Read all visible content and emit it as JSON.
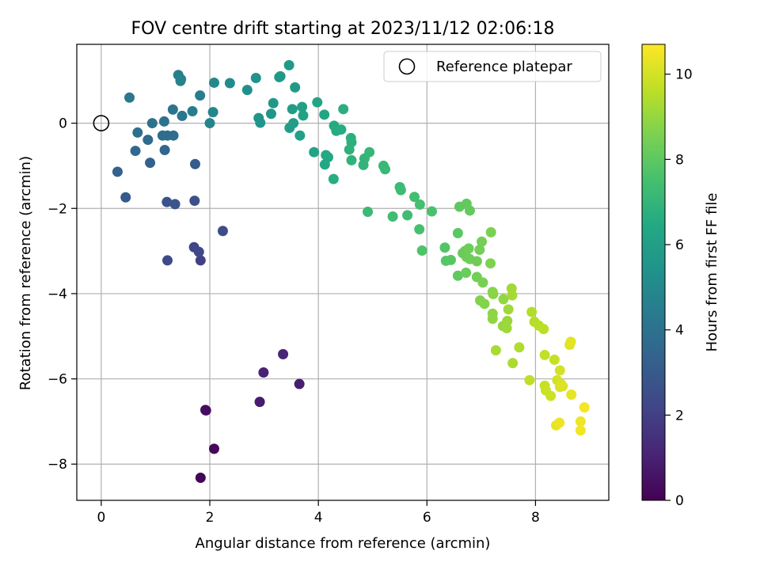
{
  "chart_data": {
    "type": "scatter",
    "title": "FOV centre drift starting at 2023/11/12 02:06:18",
    "xlabel": "Angular distance from reference (arcmin)",
    "ylabel": "Rotation from reference (arcmin)",
    "xlim": [
      -0.45,
      9.35
    ],
    "ylim": [
      -8.85,
      1.85
    ],
    "xticks": [
      0,
      2,
      4,
      6,
      8
    ],
    "yticks": [
      -8,
      -6,
      -4,
      -2,
      0
    ],
    "xtick_labels": [
      "0",
      "2",
      "4",
      "6",
      "8"
    ],
    "ytick_labels": [
      "−8",
      "−6",
      "−4",
      "−2",
      "0"
    ],
    "grid": true,
    "legend": {
      "position": "top-right",
      "entries": [
        "Reference platepar"
      ]
    },
    "reference_point": {
      "x": 0,
      "y": 0
    },
    "colorbar": {
      "label": "Hours from first FF file",
      "colormap": "viridis",
      "range": [
        0,
        10.7
      ],
      "ticks": [
        0,
        2,
        4,
        6,
        8,
        10
      ],
      "tick_labels": [
        "0",
        "2",
        "4",
        "6",
        "8",
        "10"
      ]
    },
    "series": [
      {
        "points": [
          [
            1.83,
            -8.32,
            0.1
          ],
          [
            2.08,
            -7.64,
            0.2
          ],
          [
            1.93,
            -6.74,
            0.3
          ],
          [
            1.92,
            -6.73,
            0.35
          ],
          [
            2.92,
            -6.54,
            0.8
          ],
          [
            3.65,
            -6.12,
            0.9
          ],
          [
            2.99,
            -5.85,
            1.0
          ],
          [
            3.35,
            -5.42,
            1.1
          ],
          [
            1.83,
            -3.22,
            2.0
          ],
          [
            1.71,
            -2.91,
            2.2
          ],
          [
            1.8,
            -3.02,
            2.3
          ],
          [
            1.22,
            -3.22,
            2.4
          ],
          [
            2.24,
            -2.53,
            2.5
          ],
          [
            1.72,
            -1.82,
            2.6
          ],
          [
            1.21,
            -1.85,
            2.7
          ],
          [
            1.36,
            -1.9,
            2.8
          ],
          [
            0.45,
            -1.74,
            3.0
          ],
          [
            1.73,
            -0.96,
            3.1
          ],
          [
            0.3,
            -1.14,
            3.3
          ],
          [
            0.9,
            -0.93,
            3.4
          ],
          [
            1.17,
            -0.63,
            3.5
          ],
          [
            0.63,
            -0.65,
            3.6
          ],
          [
            0.86,
            -0.39,
            3.7
          ],
          [
            1.13,
            -0.29,
            3.75
          ],
          [
            1.22,
            -0.29,
            3.8
          ],
          [
            1.33,
            -0.29,
            3.85
          ],
          [
            0.67,
            -0.22,
            3.9
          ],
          [
            0.94,
            0.0,
            4.0
          ],
          [
            1.16,
            0.04,
            4.05
          ],
          [
            1.32,
            0.32,
            4.1
          ],
          [
            1.49,
            0.17,
            4.2
          ],
          [
            0.52,
            0.6,
            4.3
          ],
          [
            1.68,
            0.28,
            4.4
          ],
          [
            1.82,
            0.65,
            4.5
          ],
          [
            1.42,
            1.13,
            4.6
          ],
          [
            1.47,
            1.03,
            4.65
          ],
          [
            1.46,
            0.99,
            4.7
          ],
          [
            2.0,
            0.0,
            4.8
          ],
          [
            2.06,
            0.26,
            4.9
          ],
          [
            2.08,
            0.95,
            5.0
          ],
          [
            2.37,
            0.94,
            5.1
          ],
          [
            2.69,
            0.78,
            5.3
          ],
          [
            2.85,
            1.06,
            5.4
          ],
          [
            2.9,
            0.12,
            5.5
          ],
          [
            2.93,
            0.01,
            5.55
          ],
          [
            3.13,
            0.22,
            5.6
          ],
          [
            3.17,
            0.47,
            5.65
          ],
          [
            3.28,
            1.08,
            5.7
          ],
          [
            3.3,
            1.1,
            5.72
          ],
          [
            3.46,
            1.36,
            5.75
          ],
          [
            3.57,
            0.84,
            5.8
          ],
          [
            3.52,
            0.33,
            5.85
          ],
          [
            3.47,
            -0.11,
            5.9
          ],
          [
            3.54,
            0.0,
            5.95
          ],
          [
            3.7,
            0.38,
            6.0
          ],
          [
            3.66,
            -0.29,
            6.05
          ],
          [
            3.72,
            0.18,
            6.1
          ],
          [
            3.92,
            -0.68,
            6.2
          ],
          [
            3.98,
            0.49,
            6.25
          ],
          [
            4.11,
            0.2,
            6.3
          ],
          [
            4.12,
            -0.97,
            6.35
          ],
          [
            4.18,
            -0.8,
            6.4
          ],
          [
            4.14,
            -0.75,
            6.45
          ],
          [
            4.29,
            -0.06,
            6.5
          ],
          [
            4.33,
            -0.18,
            6.55
          ],
          [
            4.42,
            -0.15,
            6.6
          ],
          [
            4.28,
            -1.31,
            6.65
          ],
          [
            4.46,
            0.33,
            6.7
          ],
          [
            4.6,
            -0.35,
            6.75
          ],
          [
            4.61,
            -0.45,
            6.8
          ],
          [
            4.57,
            -0.62,
            6.85
          ],
          [
            4.61,
            -0.87,
            6.9
          ],
          [
            4.83,
            -0.98,
            6.95
          ],
          [
            4.85,
            -0.83,
            7.0
          ],
          [
            4.94,
            -0.68,
            7.05
          ],
          [
            5.2,
            -1.0,
            7.1
          ],
          [
            5.23,
            -1.08,
            7.15
          ],
          [
            4.91,
            -2.08,
            7.2
          ],
          [
            5.5,
            -1.5,
            7.25
          ],
          [
            5.52,
            -1.57,
            7.3
          ],
          [
            5.37,
            -2.19,
            7.35
          ],
          [
            5.64,
            -2.16,
            7.4
          ],
          [
            5.77,
            -1.73,
            7.45
          ],
          [
            5.87,
            -1.91,
            7.5
          ],
          [
            5.86,
            -2.49,
            7.55
          ],
          [
            6.09,
            -2.07,
            7.6
          ],
          [
            5.91,
            -2.99,
            7.7
          ],
          [
            6.33,
            -2.92,
            7.8
          ],
          [
            6.35,
            -3.23,
            7.85
          ],
          [
            6.44,
            -3.21,
            7.9
          ],
          [
            6.57,
            -2.58,
            7.95
          ],
          [
            6.57,
            -3.58,
            8.0
          ],
          [
            6.6,
            -1.96,
            8.05
          ],
          [
            6.73,
            -1.89,
            8.1
          ],
          [
            6.79,
            -2.05,
            8.15
          ],
          [
            6.66,
            -3.05,
            8.2
          ],
          [
            6.7,
            -3.0,
            8.22
          ],
          [
            6.72,
            -3.51,
            8.25
          ],
          [
            6.73,
            -3.14,
            8.28
          ],
          [
            6.77,
            -2.94,
            8.3
          ],
          [
            6.79,
            -3.19,
            8.32
          ],
          [
            6.92,
            -3.24,
            8.35
          ],
          [
            6.92,
            -3.61,
            8.38
          ],
          [
            6.97,
            -2.97,
            8.4
          ],
          [
            7.01,
            -2.78,
            8.45
          ],
          [
            7.03,
            -3.74,
            8.5
          ],
          [
            7.18,
            -2.56,
            8.55
          ],
          [
            7.17,
            -3.29,
            8.6
          ],
          [
            6.98,
            -4.16,
            8.65
          ],
          [
            7.06,
            -4.24,
            8.7
          ],
          [
            7.21,
            -3.96,
            8.75
          ],
          [
            7.22,
            -4.01,
            8.8
          ],
          [
            7.21,
            -4.47,
            8.85
          ],
          [
            7.21,
            -4.59,
            8.9
          ],
          [
            7.41,
            -4.13,
            8.95
          ],
          [
            7.4,
            -4.76,
            9.0
          ],
          [
            7.48,
            -4.64,
            9.05
          ],
          [
            7.47,
            -4.81,
            9.1
          ],
          [
            7.5,
            -4.37,
            9.15
          ],
          [
            7.56,
            -3.88,
            9.2
          ],
          [
            7.57,
            -4.04,
            9.25
          ],
          [
            7.27,
            -5.33,
            9.3
          ],
          [
            7.58,
            -5.63,
            9.35
          ],
          [
            7.7,
            -5.26,
            9.4
          ],
          [
            7.93,
            -4.43,
            9.45
          ],
          [
            7.98,
            -4.66,
            9.5
          ],
          [
            8.06,
            -4.75,
            9.55
          ],
          [
            8.15,
            -4.83,
            9.6
          ],
          [
            7.89,
            -6.03,
            9.65
          ],
          [
            8.17,
            -5.44,
            9.7
          ],
          [
            8.35,
            -5.55,
            9.75
          ],
          [
            8.17,
            -6.16,
            9.8
          ],
          [
            8.19,
            -6.27,
            9.85
          ],
          [
            8.28,
            -6.4,
            9.9
          ],
          [
            8.4,
            -6.03,
            9.95
          ],
          [
            8.45,
            -5.8,
            10.0
          ],
          [
            8.47,
            -6.12,
            10.05
          ],
          [
            8.5,
            -6.17,
            10.1
          ],
          [
            8.45,
            -6.19,
            10.15
          ],
          [
            8.63,
            -5.2,
            10.2
          ],
          [
            8.65,
            -5.13,
            10.25
          ],
          [
            8.66,
            -6.37,
            10.3
          ],
          [
            8.38,
            -7.09,
            10.35
          ],
          [
            8.44,
            -7.03,
            10.4
          ],
          [
            8.83,
            -7.0,
            10.45
          ],
          [
            8.83,
            -7.21,
            10.5
          ],
          [
            8.9,
            -6.67,
            10.55
          ]
        ]
      }
    ]
  }
}
